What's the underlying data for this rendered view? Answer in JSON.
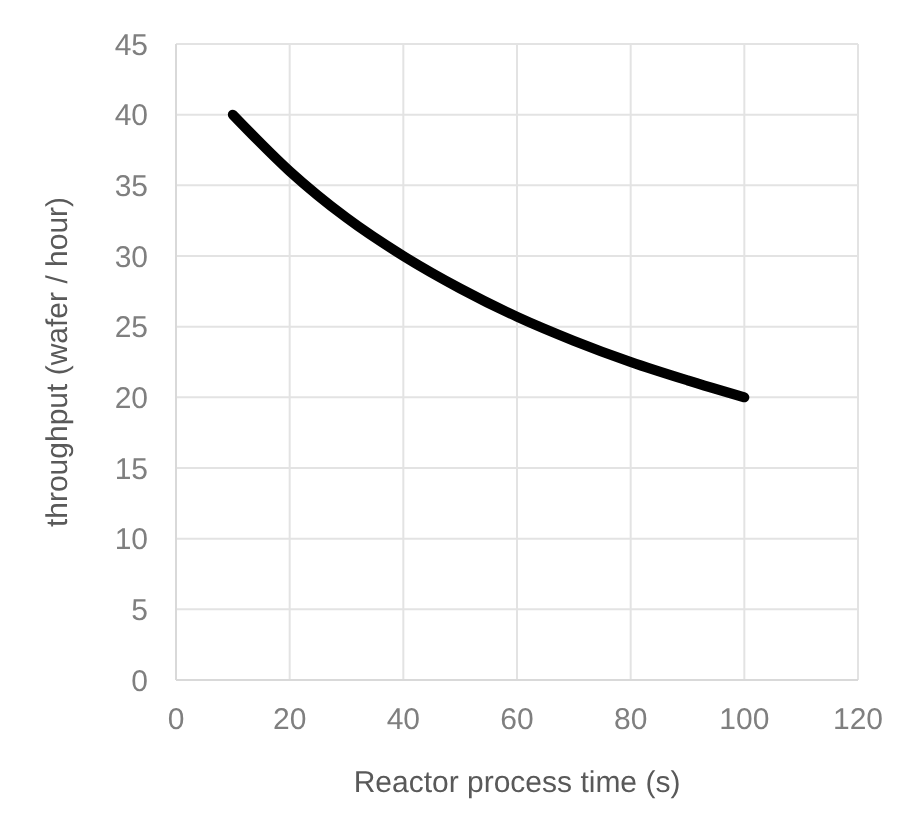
{
  "chart_data": {
    "type": "line",
    "xlabel": "Reactor process time (s)",
    "ylabel": "throughput (wafer / hour)",
    "x": [
      10,
      20,
      30,
      40,
      50,
      60,
      70,
      80,
      90,
      100
    ],
    "series": [
      {
        "color": "#000000",
        "values": [
          40,
          36,
          32.7,
          30,
          27.7,
          25.7,
          24,
          22.5,
          21.2,
          20
        ]
      }
    ],
    "xlim": [
      0,
      120
    ],
    "xticks": [
      0,
      20,
      40,
      60,
      80,
      100,
      120
    ],
    "ylim": [
      0,
      45
    ],
    "yticks": [
      0,
      5,
      10,
      15,
      20,
      25,
      30,
      35,
      40,
      45
    ],
    "grid": true,
    "marker": "none",
    "line_style": "solid"
  }
}
